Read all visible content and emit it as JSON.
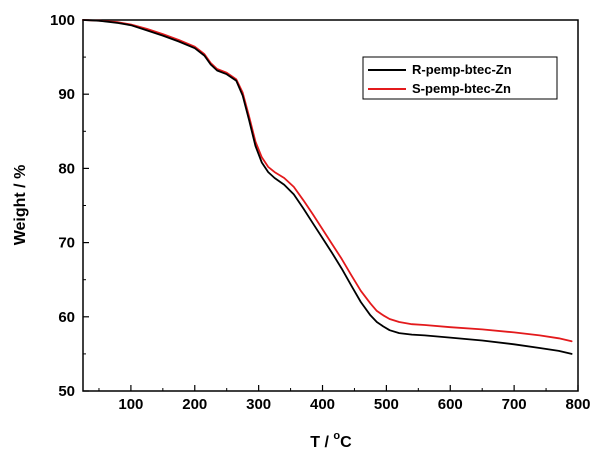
{
  "chart_data": {
    "type": "line",
    "title": "",
    "xlabel_main": "T / ",
    "xlabel_sup": "o",
    "xlabel_unit": "C",
    "ylabel": "Weight / %",
    "xlim": [
      25,
      800
    ],
    "ylim": [
      50,
      100
    ],
    "xticks": [
      100,
      200,
      300,
      400,
      500,
      600,
      700,
      800
    ],
    "yticks": [
      50,
      60,
      70,
      80,
      90,
      100
    ],
    "legend_position": "top-right",
    "grid": false,
    "series": [
      {
        "name": "R-pemp-btec-Zn",
        "color": "#000000",
        "x": [
          25,
          50,
          80,
          100,
          125,
          150,
          175,
          200,
          215,
          225,
          235,
          250,
          265,
          275,
          285,
          295,
          305,
          315,
          325,
          340,
          355,
          370,
          385,
          400,
          415,
          430,
          445,
          460,
          475,
          485,
          495,
          505,
          520,
          540,
          560,
          600,
          650,
          700,
          740,
          770,
          790
        ],
        "y": [
          100,
          99.9,
          99.6,
          99.3,
          98.6,
          97.9,
          97.1,
          96.2,
          95.2,
          94.0,
          93.2,
          92.7,
          91.8,
          89.8,
          86.5,
          83.0,
          80.8,
          79.5,
          78.7,
          77.8,
          76.5,
          74.6,
          72.6,
          70.6,
          68.6,
          66.5,
          64.2,
          62.0,
          60.2,
          59.3,
          58.7,
          58.2,
          57.8,
          57.6,
          57.5,
          57.2,
          56.8,
          56.3,
          55.8,
          55.4,
          55.0
        ]
      },
      {
        "name": "S-pemp-btec-Zn",
        "color": "#e31a1c",
        "x": [
          25,
          50,
          80,
          100,
          125,
          150,
          175,
          200,
          215,
          225,
          235,
          250,
          265,
          275,
          285,
          295,
          305,
          315,
          325,
          340,
          355,
          370,
          385,
          400,
          415,
          430,
          445,
          460,
          475,
          485,
          495,
          505,
          520,
          540,
          560,
          600,
          650,
          700,
          740,
          770,
          790
        ],
        "y": [
          100,
          99.9,
          99.7,
          99.4,
          98.8,
          98.1,
          97.3,
          96.4,
          95.4,
          94.2,
          93.4,
          92.9,
          92.0,
          90.2,
          87.0,
          83.6,
          81.5,
          80.2,
          79.5,
          78.7,
          77.5,
          75.7,
          73.8,
          71.8,
          69.8,
          67.8,
          65.6,
          63.5,
          61.8,
          60.8,
          60.2,
          59.7,
          59.3,
          59.0,
          58.9,
          58.6,
          58.3,
          57.9,
          57.5,
          57.1,
          56.7
        ]
      }
    ]
  }
}
